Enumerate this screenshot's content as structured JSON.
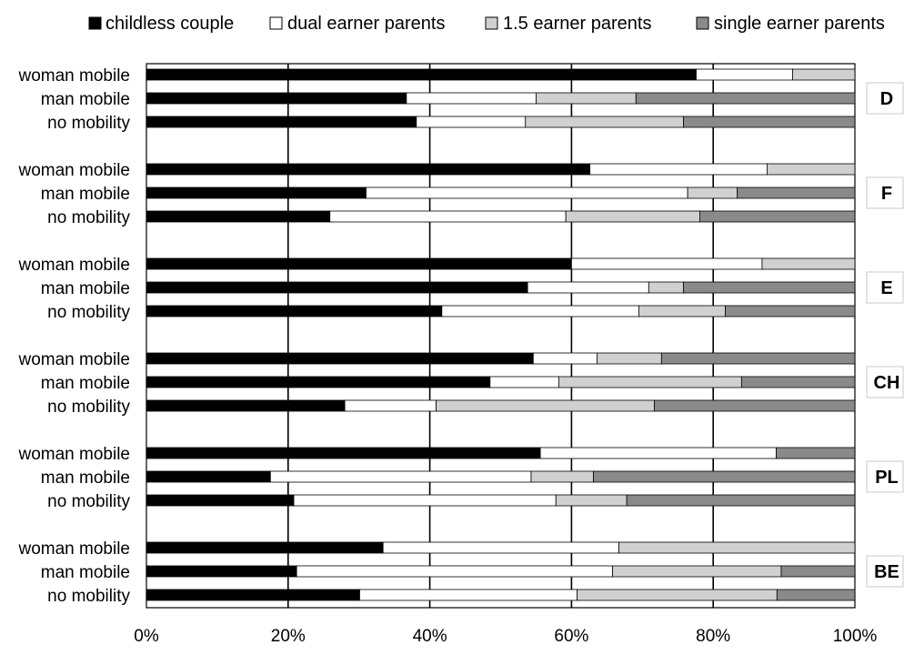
{
  "chart_data": {
    "type": "bar",
    "stacked": true,
    "orientation": "horizontal",
    "title": "",
    "xlabel": "",
    "ylabel": "",
    "xlim": [
      0,
      100
    ],
    "x_ticks": [
      "0%",
      "20%",
      "40%",
      "60%",
      "80%",
      "100%"
    ],
    "grid": "vertical gridlines",
    "legend_position": "top",
    "series": [
      {
        "name": "childless couple",
        "color": "#000000"
      },
      {
        "name": "dual earner parents",
        "color": "#ffffff"
      },
      {
        "name": "1.5 earner parents",
        "color": "#d0d0d0"
      },
      {
        "name": "single earner parents",
        "color": "#8a8a8a"
      }
    ],
    "groups": [
      {
        "label": "D",
        "bars": [
          {
            "category": "woman mobile",
            "values": [
              77.6,
              13.6,
              8.8,
              0
            ]
          },
          {
            "category": "man mobile",
            "values": [
              36.7,
              18.3,
              14.1,
              30.9
            ]
          },
          {
            "category": "no mobility",
            "values": [
              38.1,
              15.4,
              22.3,
              24.2
            ]
          }
        ]
      },
      {
        "label": "F",
        "bars": [
          {
            "category": "woman mobile",
            "values": [
              62.6,
              25.0,
              12.4,
              0
            ]
          },
          {
            "category": "man mobile",
            "values": [
              31.0,
              45.4,
              7.0,
              16.6
            ]
          },
          {
            "category": "no mobility",
            "values": [
              25.9,
              33.3,
              18.9,
              21.9
            ]
          }
        ]
      },
      {
        "label": "E",
        "bars": [
          {
            "category": "woman mobile",
            "values": [
              60.0,
              26.9,
              13.1,
              0
            ]
          },
          {
            "category": "man mobile",
            "values": [
              53.8,
              17.1,
              4.9,
              24.2
            ]
          },
          {
            "category": "no mobility",
            "values": [
              41.7,
              27.8,
              12.2,
              18.3
            ]
          }
        ]
      },
      {
        "label": "CH",
        "bars": [
          {
            "category": "woman mobile",
            "values": [
              54.6,
              9.0,
              9.1,
              27.3
            ]
          },
          {
            "category": "man mobile",
            "values": [
              48.5,
              9.7,
              25.8,
              16.0
            ]
          },
          {
            "category": "no mobility",
            "values": [
              28.0,
              12.9,
              30.8,
              28.3
            ]
          }
        ]
      },
      {
        "label": "PL",
        "bars": [
          {
            "category": "woman mobile",
            "values": [
              55.6,
              33.3,
              0,
              11.1
            ]
          },
          {
            "category": "man mobile",
            "values": [
              17.5,
              36.8,
              8.8,
              36.9
            ]
          },
          {
            "category": "no mobility",
            "values": [
              20.8,
              37.0,
              10.0,
              32.2
            ]
          }
        ]
      },
      {
        "label": "BE",
        "bars": [
          {
            "category": "woman mobile",
            "values": [
              33.4,
              33.3,
              33.3,
              0
            ]
          },
          {
            "category": "man mobile",
            "values": [
              21.2,
              44.6,
              23.8,
              10.4
            ]
          },
          {
            "category": "no mobility",
            "values": [
              30.1,
              30.7,
              28.2,
              11.0
            ]
          }
        ]
      }
    ]
  }
}
